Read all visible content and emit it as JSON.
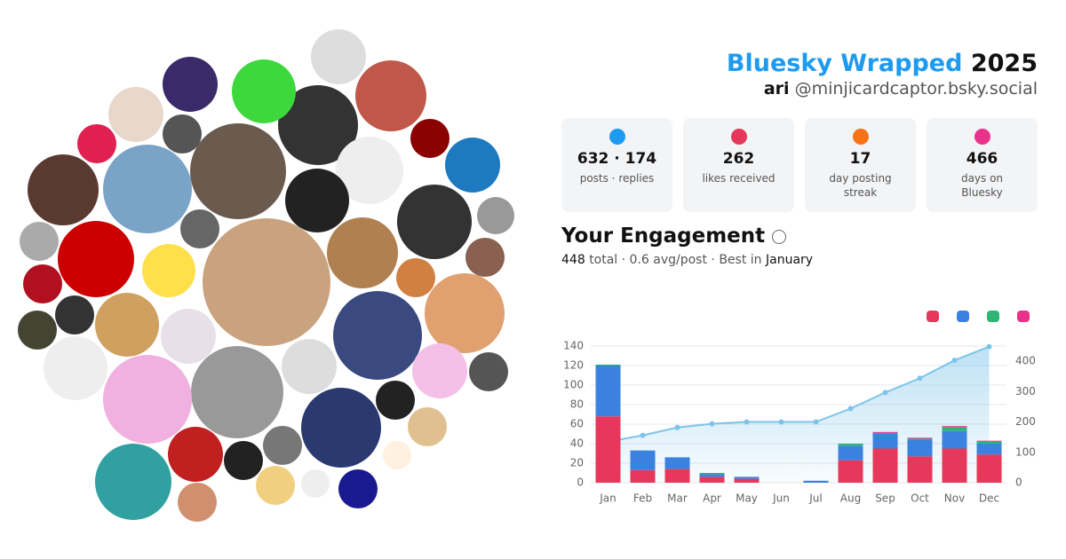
{
  "header": {
    "title": "Bluesky Wrapped",
    "year": "2025",
    "name": "ari",
    "handle": "@minjicardcaptor.bsky.social"
  },
  "stats": [
    {
      "value": "632 · 174",
      "label": "posts · replies",
      "color": "#1d9bf0"
    },
    {
      "value": 262,
      "label": "likes received",
      "color": "#e5385a"
    },
    {
      "value": 17,
      "label": "day posting streak",
      "color": "#f97316"
    },
    {
      "value": 466,
      "label": "days on Bluesky",
      "color": "#e8338a"
    }
  ],
  "engagement": {
    "title": "Your Engagement",
    "total": 448,
    "summary": "total · 0.6 avg/post · Best in",
    "best": "January"
  },
  "chart_data": {
    "type": "bar",
    "stacked": true,
    "grid": true,
    "categories": [
      "Jan",
      "Feb",
      "Mar",
      "Apr",
      "May",
      "Jun",
      "Jul",
      "Aug",
      "Sep",
      "Oct",
      "Nov",
      "Dec"
    ],
    "series": [
      {
        "color": "#e5385a",
        "values": [
          68,
          13,
          14,
          6,
          4,
          0,
          0,
          23,
          35,
          27,
          35,
          29
        ]
      },
      {
        "color": "#3b82e0",
        "values": [
          52,
          20,
          12,
          3,
          2,
          0,
          2,
          15,
          15,
          17,
          18,
          11
        ]
      },
      {
        "color": "#2bb673",
        "values": [
          1,
          0,
          0,
          1,
          0,
          0,
          0,
          2,
          1,
          1,
          4,
          2
        ]
      },
      {
        "color": "#e8338a",
        "values": [
          0,
          0,
          0,
          0,
          0,
          0,
          0,
          0,
          1,
          1,
          1,
          1
        ]
      },
      {
        "type": "line",
        "axis": "y2",
        "color": "#7cc4ea",
        "values": [
          135,
          156,
          182,
          194,
          200,
          200,
          200,
          244,
          297,
          344,
          403,
          448
        ]
      }
    ],
    "ylim": [
      0,
      140
    ],
    "yticks": [
      0,
      20,
      40,
      60,
      80,
      100,
      120,
      140
    ],
    "y2lim": [
      0,
      450
    ],
    "y2ticks": [
      0,
      100,
      200,
      300,
      400
    ]
  }
}
